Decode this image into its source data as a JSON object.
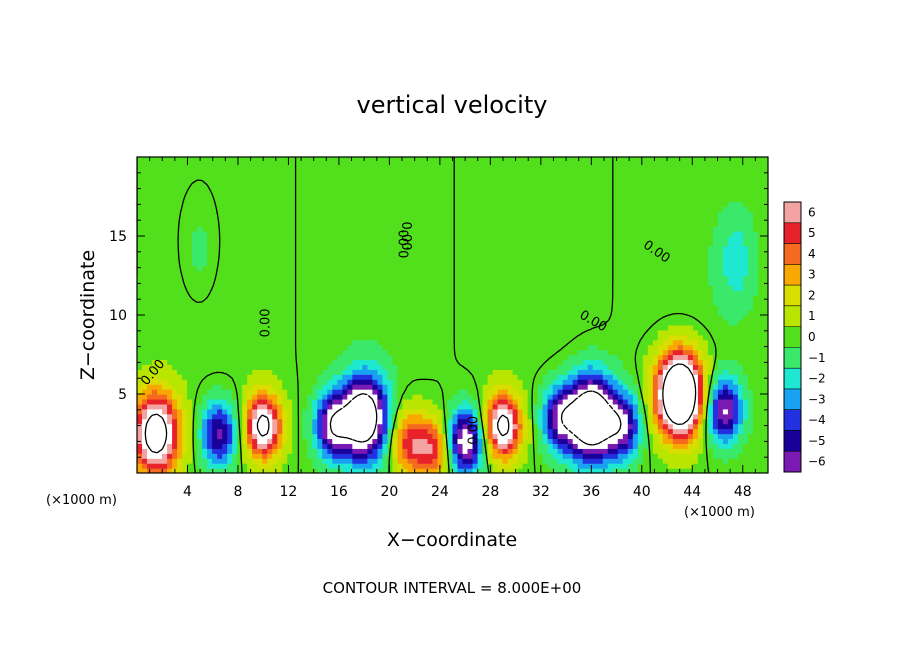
{
  "chart_data": {
    "type": "heatmap",
    "title": "vertical velocity",
    "xlabel": "X−coordinate",
    "ylabel": "Z−coordinate",
    "x_unit_label": "(×1000 m)",
    "x_unit_label_right": "(×1000 m)",
    "footnote": "CONTOUR INTERVAL = 8.000E+00",
    "xlim": [
      0,
      50
    ],
    "ylim": [
      0,
      20
    ],
    "xticks": [
      4,
      8,
      12,
      16,
      20,
      24,
      28,
      32,
      36,
      40,
      44,
      48
    ],
    "yticks": [
      5,
      10,
      15
    ],
    "colorbar": {
      "levels": [
        6,
        5,
        4,
        3,
        2,
        1,
        0,
        -1,
        -2,
        -3,
        -4,
        -5,
        -6
      ],
      "labels": [
        "6",
        "5",
        "4",
        "3",
        "2",
        "1",
        "0",
        "−1",
        "−2",
        "−3",
        "−4",
        "−5",
        "−6"
      ],
      "colors": [
        "#f4a3a3",
        "#e8222a",
        "#f56a1e",
        "#f8a800",
        "#d8de00",
        "#b8e600",
        "#52e01c",
        "#3ae86a",
        "#1ee8d2",
        "#1aa2f2",
        "#2230e0",
        "#1a009a",
        "#7a1ab2"
      ]
    },
    "contour_labels": [
      "0.00",
      "0.00",
      "0.00",
      "0.00",
      "0.00",
      "0.00",
      "0.00"
    ],
    "updrafts": [
      {
        "x": 1.5,
        "z": 2.5,
        "amplitude": 10
      },
      {
        "x": 10.0,
        "z": 3.0,
        "amplitude": 9
      },
      {
        "x": 18.0,
        "z": 3.5,
        "amplitude": -11
      },
      {
        "x": 21.5,
        "z": 2.0,
        "amplitude": 5
      },
      {
        "x": 23.5,
        "z": 1.5,
        "amplitude": 5
      },
      {
        "x": 29.0,
        "z": 3.0,
        "amplitude": 9
      },
      {
        "x": 36.0,
        "z": 3.5,
        "amplitude": -12
      },
      {
        "x": 43.0,
        "z": 5.0,
        "amplitude": 14
      },
      {
        "x": 6.5,
        "z": 2.5,
        "amplitude": -6
      },
      {
        "x": 15.5,
        "z": 3.0,
        "amplitude": -7
      },
      {
        "x": 26.0,
        "z": 2.0,
        "amplitude": -8
      },
      {
        "x": 33.5,
        "z": 3.5,
        "amplitude": -6
      },
      {
        "x": 38.5,
        "z": 3.0,
        "amplitude": -6
      },
      {
        "x": 46.5,
        "z": 4.0,
        "amplitude": -7
      },
      {
        "x": 47.5,
        "z": 13.5,
        "amplitude": -2
      },
      {
        "x": 5.0,
        "z": 14.0,
        "amplitude": -1
      }
    ]
  }
}
